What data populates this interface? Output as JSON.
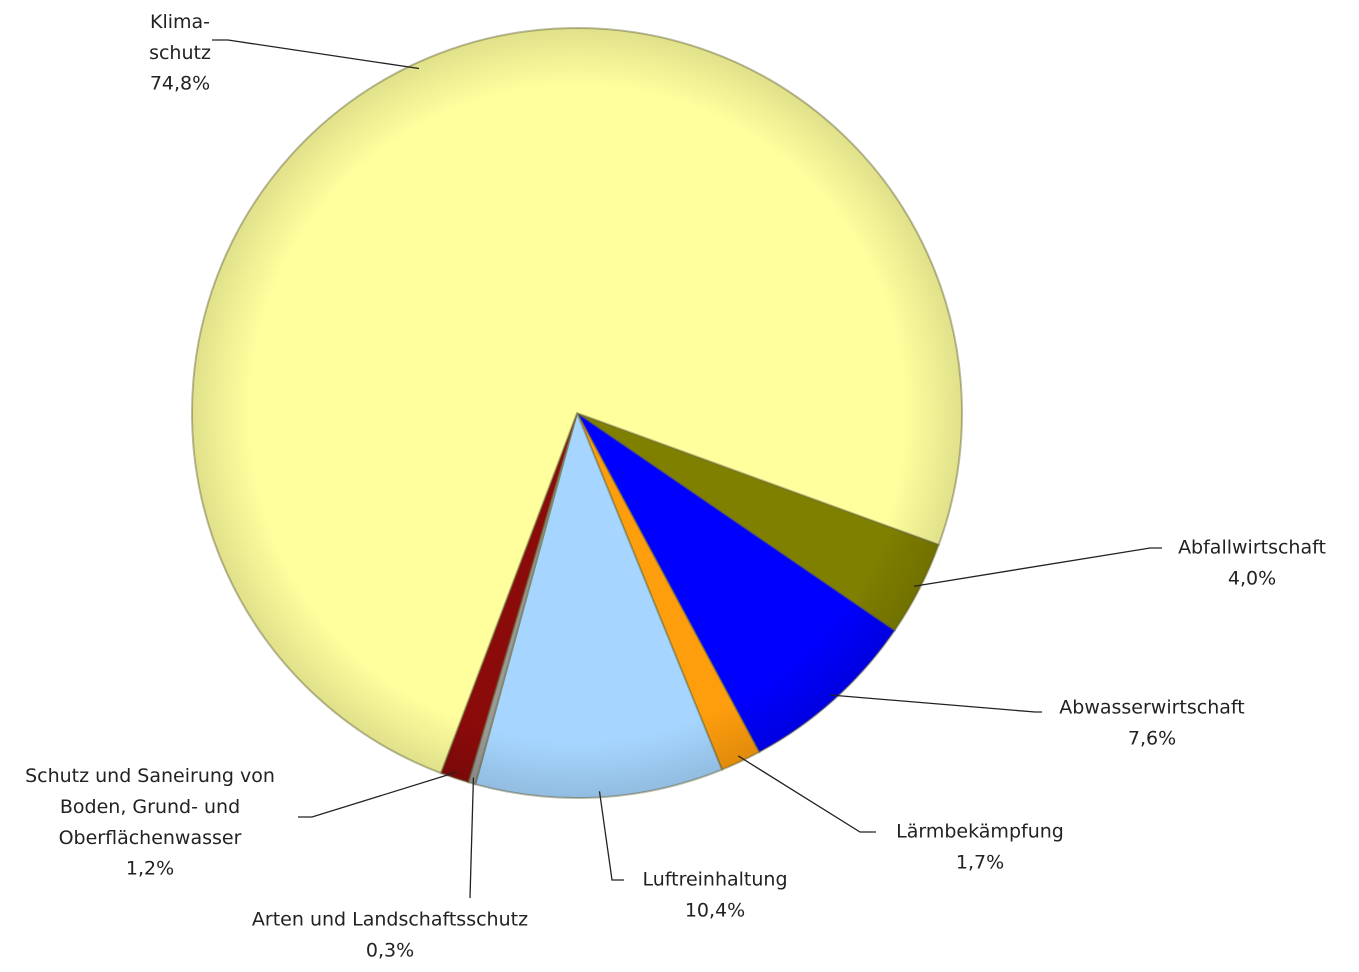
{
  "chart_data": {
    "type": "pie",
    "categories": [
      "Abfallwirtschaft",
      "Abwasserwirtschaft",
      "Lärmbekämpfung",
      "Luftreinhaltung",
      "Arten und Landschaftsschutz",
      "Schutz und Saneirung von\nBoden, Grund- und\nOberflächenwasser",
      "Klima-\nschutz"
    ],
    "values": [
      4.0,
      7.6,
      1.7,
      10.4,
      0.3,
      1.2,
      74.8
    ],
    "value_labels": [
      "4,0%",
      "7,6%",
      "1,7%",
      "10,4%",
      "0,3%",
      "1,2%",
      "74,8%"
    ],
    "colors": [
      "#808000",
      "#0000ff",
      "#ff9e0d",
      "#a6d6ff",
      "#9a9a9a",
      "#8b0a0a",
      "#ffff9e"
    ]
  }
}
